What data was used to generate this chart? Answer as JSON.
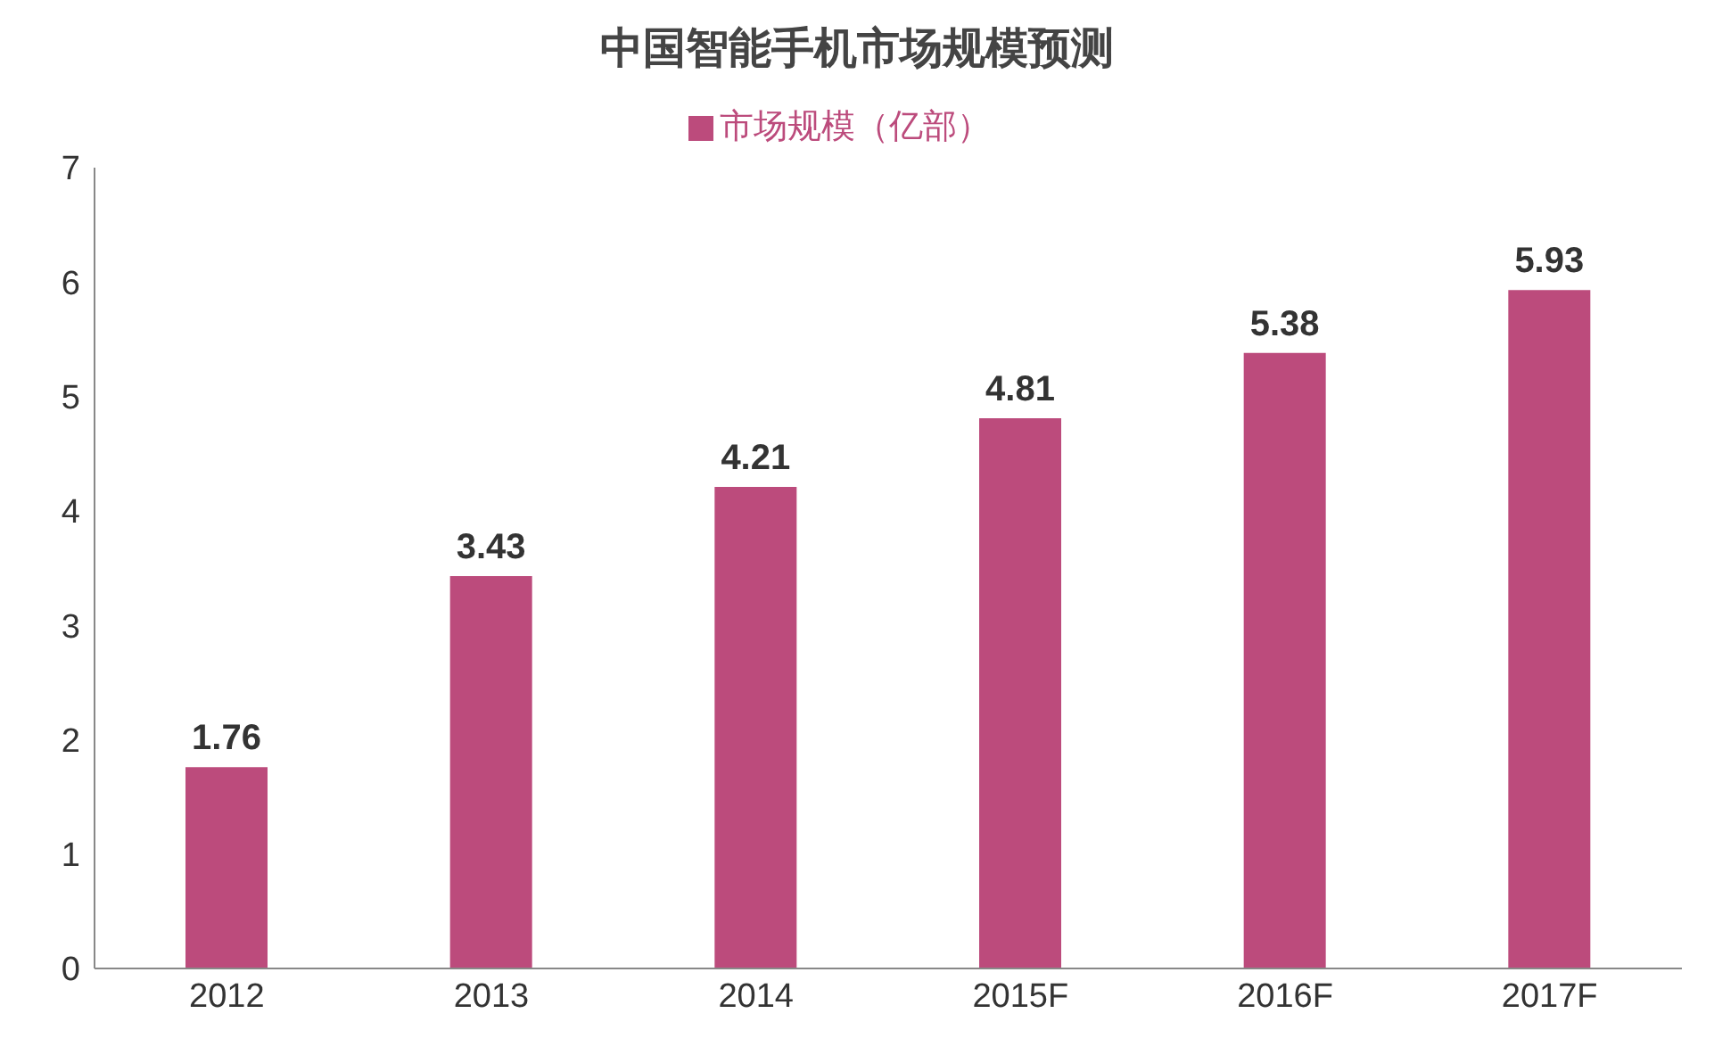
{
  "chart_data": {
    "type": "bar",
    "title": "中国智能手机市场规模预测",
    "categories": [
      "2012",
      "2013",
      "2014",
      "2015F",
      "2016F",
      "2017F"
    ],
    "series": [
      {
        "name": "市场规模（亿部）",
        "color": "#bc4b7c",
        "values": [
          1.76,
          3.43,
          4.21,
          4.81,
          5.38,
          5.93
        ]
      }
    ],
    "ylim": [
      0,
      7
    ],
    "yticks": [
      0,
      1,
      2,
      3,
      4,
      5,
      6,
      7
    ],
    "data_labels": true,
    "legend": "top",
    "grid": false
  }
}
